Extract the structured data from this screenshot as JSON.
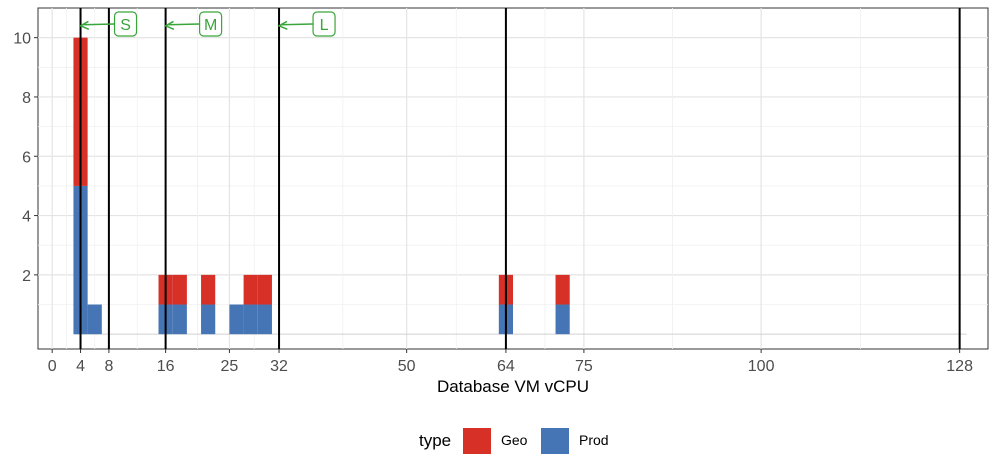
{
  "chart_data": {
    "type": "bar",
    "title": "",
    "xlabel": "Database VM vCPU",
    "ylabel": "",
    "xlim": [
      -2,
      132
    ],
    "ylim": [
      -0.5,
      11
    ],
    "x_ticks": [
      0,
      4,
      8,
      16,
      25,
      32,
      50,
      64,
      75,
      100,
      128
    ],
    "y_ticks": [
      2,
      4,
      6,
      8,
      10
    ],
    "grid": true,
    "legend": {
      "title": "type",
      "position": "bottom"
    },
    "bin_width": 2,
    "series": [
      {
        "name": "Prod",
        "color": "#4575b4",
        "bins": [
          {
            "x0": 3,
            "x1": 5,
            "value": 5
          },
          {
            "x0": 5,
            "x1": 7,
            "value": 1
          },
          {
            "x0": 15,
            "x1": 17,
            "value": 1
          },
          {
            "x0": 17,
            "x1": 19,
            "value": 1
          },
          {
            "x0": 21,
            "x1": 23,
            "value": 1
          },
          {
            "x0": 25,
            "x1": 27,
            "value": 1
          },
          {
            "x0": 27,
            "x1": 29,
            "value": 1
          },
          {
            "x0": 29,
            "x1": 31,
            "value": 1
          },
          {
            "x0": 63,
            "x1": 65,
            "value": 1
          },
          {
            "x0": 71,
            "x1": 73,
            "value": 1
          }
        ]
      },
      {
        "name": "Geo",
        "color": "#d73027",
        "bins": [
          {
            "x0": 3,
            "x1": 5,
            "value": 5
          },
          {
            "x0": 15,
            "x1": 17,
            "value": 1
          },
          {
            "x0": 17,
            "x1": 19,
            "value": 1
          },
          {
            "x0": 21,
            "x1": 23,
            "value": 1
          },
          {
            "x0": 27,
            "x1": 29,
            "value": 1
          },
          {
            "x0": 29,
            "x1": 31,
            "value": 1
          },
          {
            "x0": 63,
            "x1": 65,
            "value": 1
          },
          {
            "x0": 71,
            "x1": 73,
            "value": 1
          }
        ]
      }
    ],
    "reference_lines": [
      4,
      8,
      16,
      32,
      64,
      128
    ],
    "annotations": [
      {
        "label": "S",
        "x": 4,
        "y": 10.4
      },
      {
        "label": "M",
        "x": 16,
        "y": 10.4
      },
      {
        "label": "L",
        "x": 32,
        "y": 10.4
      }
    ]
  }
}
